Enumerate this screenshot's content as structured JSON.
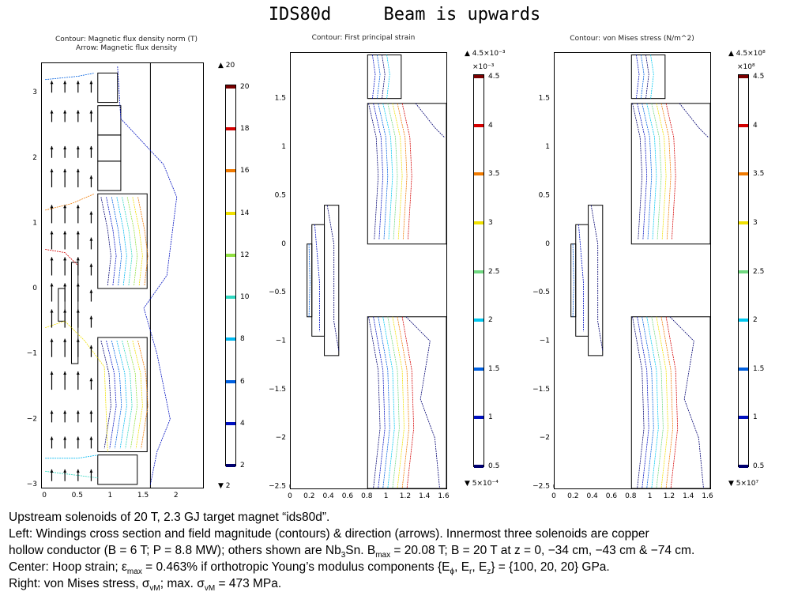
{
  "slide": {
    "title": "IDS80d     Beam is upwards"
  },
  "panels": {
    "left": {
      "title_line1": "Contour: Magnetic flux density norm (T)",
      "title_line2": "Arrow: Magnetic flux density",
      "colorbar_max": "▲ 20",
      "colorbar_min": "▼ 2",
      "colorbar_exponent": ""
    },
    "center": {
      "title_line1": "Contour: First principal strain",
      "colorbar_max": "▲ 4.5×10⁻³",
      "colorbar_min": "▼ 5×10⁻⁴",
      "colorbar_exponent": "×10⁻³"
    },
    "right": {
      "title_line1": "Contour: von Mises stress (N/m^2)",
      "colorbar_max": "▲ 4.5×10⁸",
      "colorbar_min": "▼ 5×10⁷",
      "colorbar_exponent": "×10⁸"
    }
  },
  "caption": {
    "line1": "Upstream solenoids of 20 T, 2.3 GJ target magnet “ids80d”.",
    "line2_a": "Left:  Windings cross section and field magnitude (contours) & direction (arrows).  Innermost three solenoids are copper",
    "line3_a": "hollow conductor (B = 6 T; P = 8.8 MW); others shown are Nb",
    "line3_sub": "3",
    "line3_b": "Sn.  B",
    "line3_sub2": "max",
    "line3_c": " = 20.08 T; B = 20 T at z = 0, −34 cm, −43 cm & −74 cm.",
    "line4_a": "Center:  Hoop strain; ε",
    "line4_sub": "max",
    "line4_b": " = 0.463% if orthotropic Young’s modulus components {E",
    "line4_sub2": "ϕ",
    "line4_c": ", E",
    "line4_sub3": "r",
    "line4_d": ", E",
    "line4_sub4": "z",
    "line4_e": "} = {100, 20, 20} GPa.",
    "line5_a": "Right:  von Mises stress, σ",
    "line5_sub": "vM",
    "line5_b": "; max. σ",
    "line5_sub2": "vM",
    "line5_c": " = 473 MPa."
  },
  "chart_data": [
    {
      "type": "contour",
      "title": "Contour: Magnetic flux density norm (T)\nArrow: Magnetic flux density",
      "xlabel": "",
      "ylabel": "",
      "xlim": [
        -0.05,
        2.4
      ],
      "ylim": [
        -3.05,
        3.45
      ],
      "x_ticks": [
        "0",
        "0.5",
        "1",
        "1.5",
        "2"
      ],
      "x_tick_values": [
        0,
        0.5,
        1,
        1.5,
        2
      ],
      "y_ticks": [
        "3",
        "2",
        "1",
        "0",
        "−1",
        "−2",
        "−3"
      ],
      "y_tick_values": [
        3,
        2,
        1,
        0,
        -1,
        -2,
        -3
      ],
      "colorbar": {
        "tick_labels": [
          "20",
          "18",
          "16",
          "14",
          "12",
          "10",
          "8",
          "6",
          "4",
          "2"
        ],
        "levels": [
          20,
          18,
          16,
          14,
          12,
          10,
          8,
          6,
          4,
          2
        ],
        "colors": [
          "#7a0000",
          "#d40000",
          "#f07a00",
          "#f0e000",
          "#90e040",
          "#30d8c0",
          "#00b8f0",
          "#0060e0",
          "#0010c0",
          "#000070"
        ],
        "max": 20,
        "min": 2
      }
    },
    {
      "type": "contour",
      "title": "Contour: First principal strain",
      "xlabel": "",
      "ylabel": "",
      "xlim": [
        0,
        1.62
      ],
      "ylim": [
        -2.52,
        1.97
      ],
      "x_ticks": [
        "0",
        "0.2",
        "0.4",
        "0.6",
        "0.8",
        "1",
        "1.2",
        "1.4",
        "1.6"
      ],
      "x_tick_values": [
        0,
        0.2,
        0.4,
        0.6,
        0.8,
        1.0,
        1.2,
        1.4,
        1.6
      ],
      "y_ticks": [
        "1.5",
        "1",
        "0.5",
        "0",
        "−0.5",
        "−1",
        "−1.5",
        "−2",
        "−2.5"
      ],
      "y_tick_values": [
        1.5,
        1,
        0.5,
        0,
        -0.5,
        -1,
        -1.5,
        -2,
        -2.5
      ],
      "colorbar": {
        "tick_labels": [
          "4.5",
          "4",
          "3.5",
          "3",
          "2.5",
          "2",
          "1.5",
          "1",
          "0.5"
        ],
        "levels": [
          4.5,
          4,
          3.5,
          3,
          2.5,
          2,
          1.5,
          1,
          0.5
        ],
        "colors": [
          "#7a0000",
          "#d40000",
          "#f07a00",
          "#f0e000",
          "#70d880",
          "#00c8f0",
          "#0060e0",
          "#0010c0",
          "#000070"
        ],
        "max": 0.0045,
        "min": 0.0005
      }
    },
    {
      "type": "contour",
      "title": "Contour: von Mises stress (N/m^2)",
      "xlabel": "",
      "ylabel": "",
      "xlim": [
        0,
        1.62
      ],
      "ylim": [
        -2.52,
        1.97
      ],
      "x_ticks": [
        "0",
        "0.2",
        "0.4",
        "0.6",
        "0.8",
        "1",
        "1.2",
        "1.4",
        "1.6"
      ],
      "x_tick_values": [
        0,
        0.2,
        0.4,
        0.6,
        0.8,
        1.0,
        1.2,
        1.4,
        1.6
      ],
      "y_ticks": [
        "1.5",
        "1",
        "0.5",
        "0",
        "−0.5",
        "−1",
        "−1.5",
        "−2",
        "−2.5"
      ],
      "y_tick_values": [
        1.5,
        1,
        0.5,
        0,
        -0.5,
        -1,
        -1.5,
        -2,
        -2.5
      ],
      "colorbar": {
        "tick_labels": [
          "4.5",
          "4",
          "3.5",
          "3",
          "2.5",
          "2",
          "1.5",
          "1",
          "0.5"
        ],
        "levels": [
          4.5,
          4,
          3.5,
          3,
          2.5,
          2,
          1.5,
          1,
          0.5
        ],
        "colors": [
          "#7a0000",
          "#d40000",
          "#f07a00",
          "#f0e000",
          "#70d880",
          "#00c8f0",
          "#0060e0",
          "#0010c0",
          "#000070"
        ],
        "max": 450000000,
        "min": 50000000
      }
    }
  ]
}
